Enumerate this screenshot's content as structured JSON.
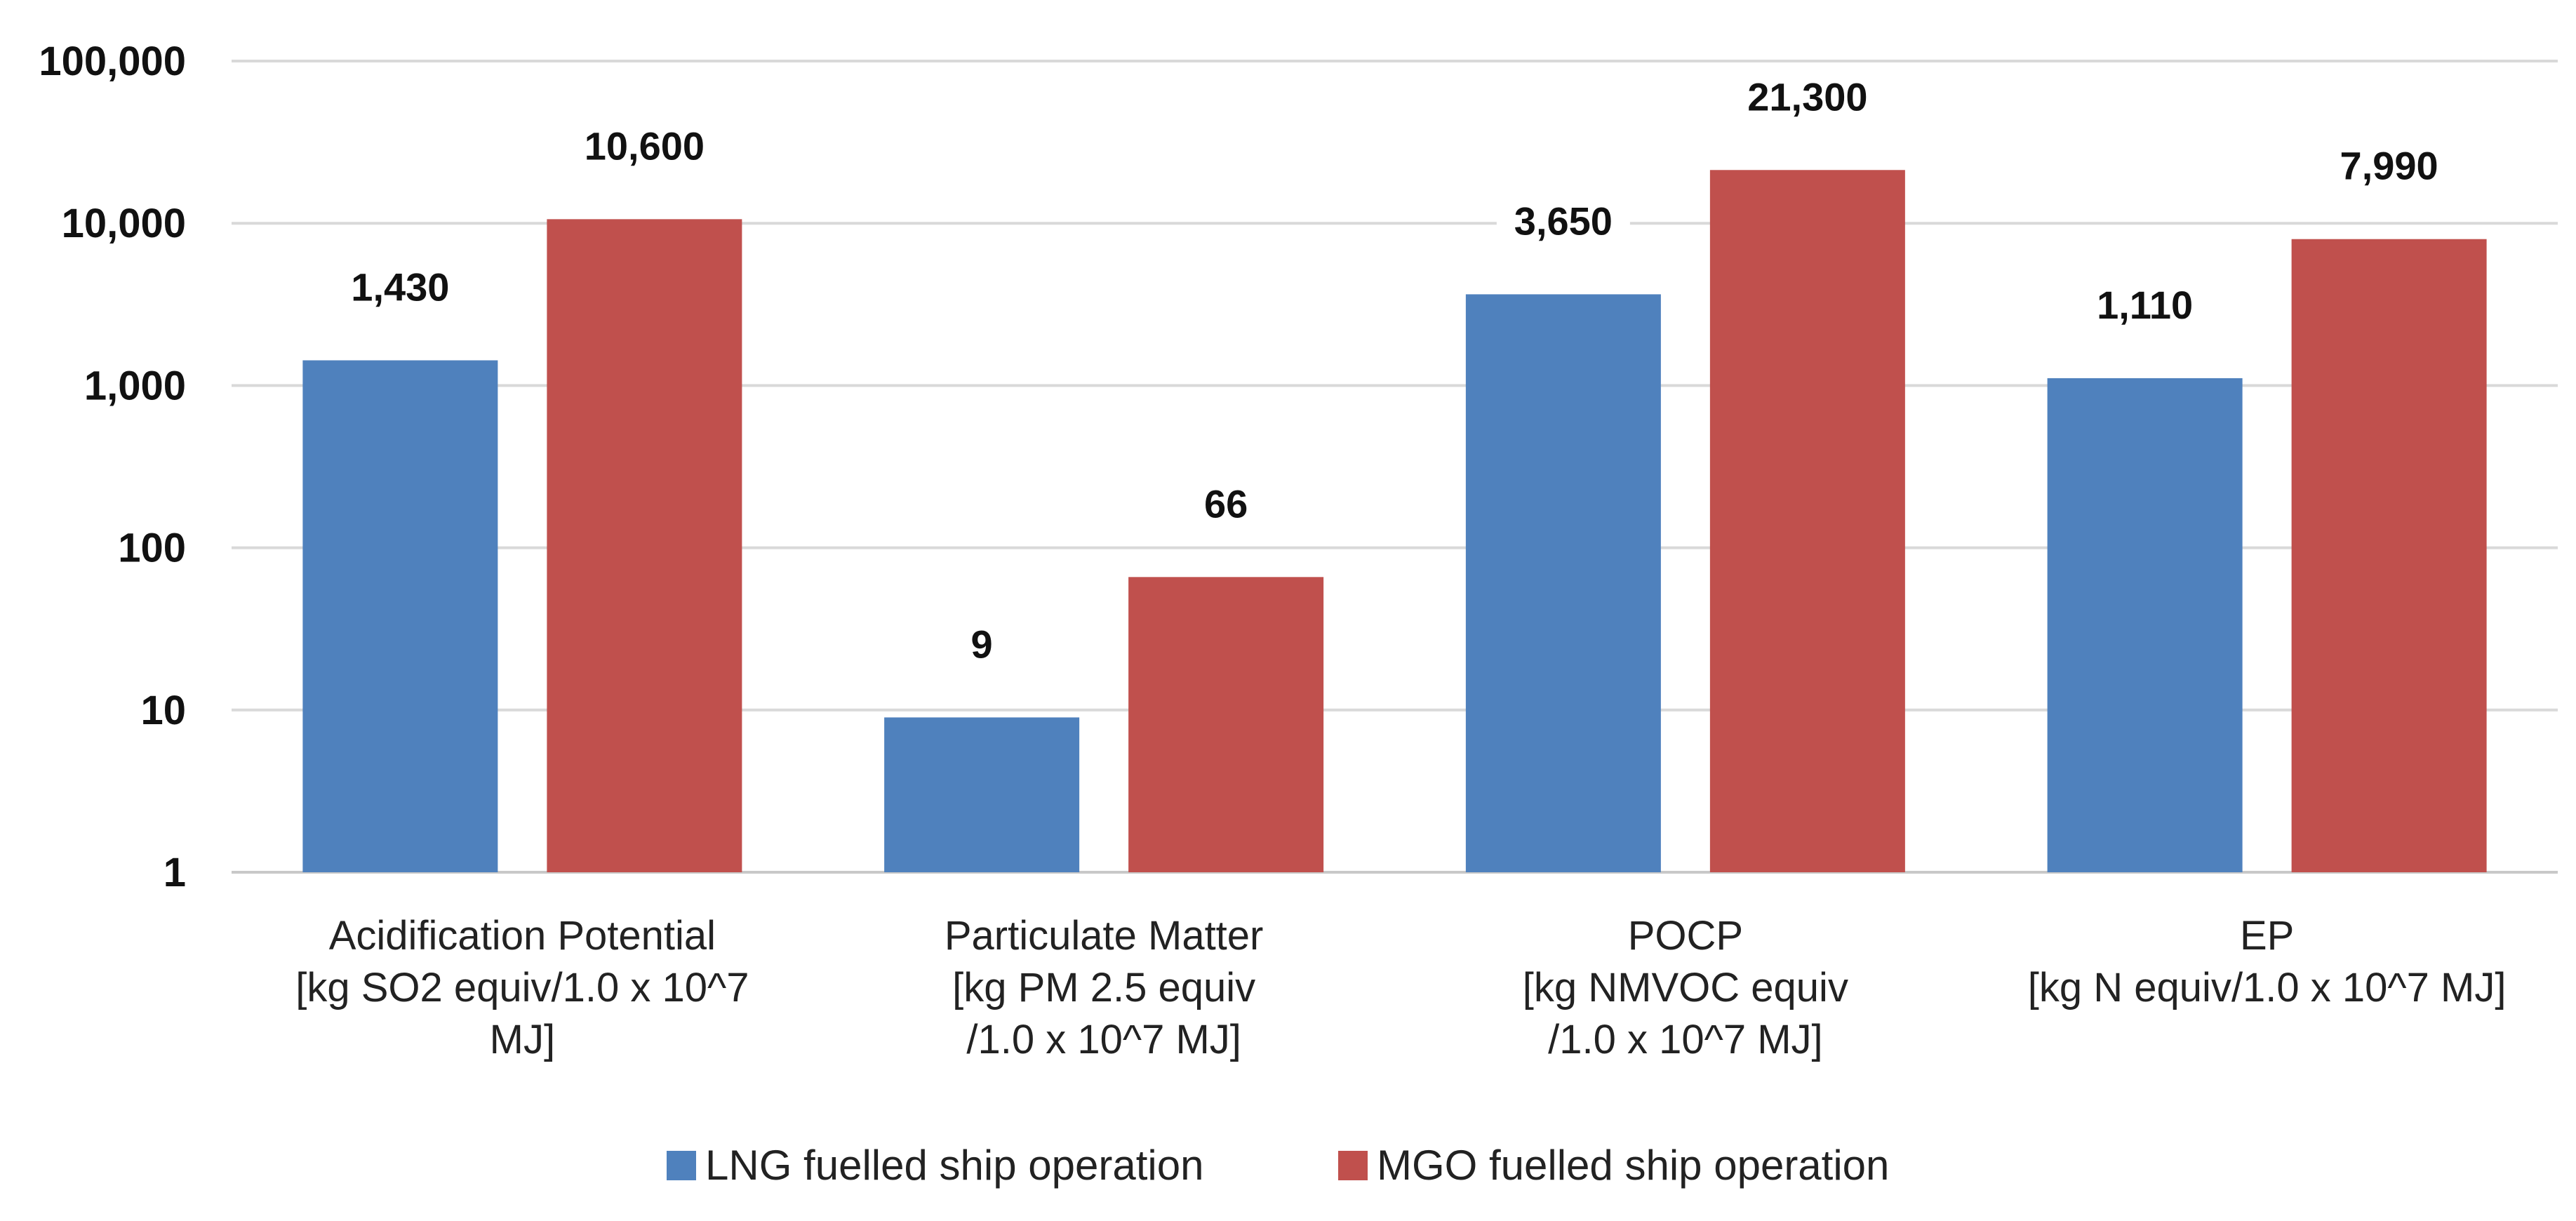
{
  "chart_data": {
    "type": "bar",
    "scale": "log",
    "title": "",
    "xlabel": "",
    "ylabel": "",
    "ylim": [
      1,
      100000
    ],
    "y_ticks": [
      1,
      10,
      100,
      1000,
      10000,
      100000
    ],
    "y_tick_labels": [
      "1",
      "10",
      "100",
      "1,000",
      "10,000",
      "100,000"
    ],
    "grid": true,
    "legend_position": "bottom",
    "categories": [
      {
        "name": "acidification",
        "lines": [
          "Acidification Potential",
          "[kg SO2 equiv/1.0 x 10^7",
          "MJ]"
        ]
      },
      {
        "name": "particulate",
        "lines": [
          "Particulate Matter",
          "[kg PM 2.5 equiv",
          "/1.0 x 10^7 MJ]"
        ]
      },
      {
        "name": "pocp",
        "lines": [
          "POCP",
          "[kg NMVOC equiv",
          "/1.0 x 10^7 MJ]"
        ]
      },
      {
        "name": "ep",
        "lines": [
          "EP",
          "[kg N equiv/1.0 x 10^7 MJ]"
        ]
      }
    ],
    "series": [
      {
        "name": "LNG fuelled ship operation",
        "color": "#4f81bd",
        "values": [
          1430,
          9,
          3650,
          1110
        ],
        "labels": [
          "1,430",
          "9",
          "3,650",
          "1,110"
        ]
      },
      {
        "name": "MGO fuelled ship operation",
        "color": "#c0504d",
        "values": [
          10600,
          66,
          21300,
          7990
        ],
        "labels": [
          "10,600",
          "66",
          "21,300",
          "7,990"
        ]
      }
    ]
  }
}
